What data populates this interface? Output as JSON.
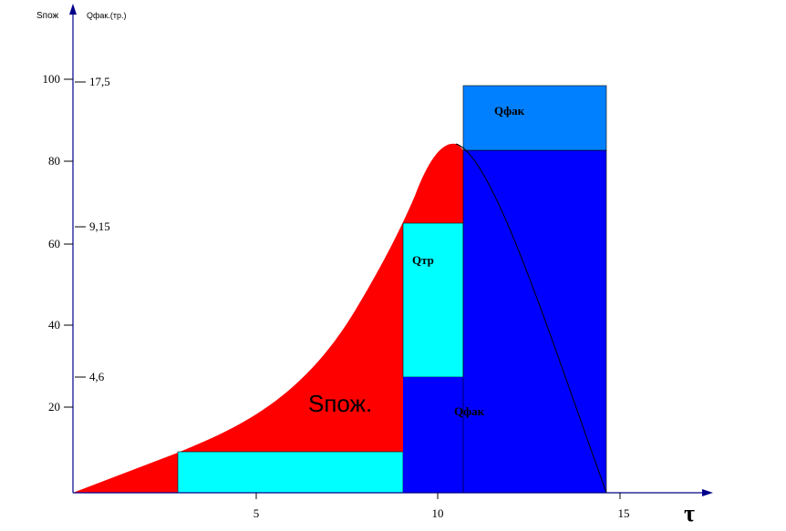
{
  "axes": {
    "y_label": "Sпож",
    "y2_label": "Qфак.(тр.)",
    "x_label": "τ",
    "y_ticks": [
      "20",
      "40",
      "60",
      "80",
      "100"
    ],
    "y2_ticks": [
      "4,6",
      "9,15",
      "17,5"
    ],
    "x_ticks": [
      "5",
      "10",
      "15"
    ]
  },
  "regions": {
    "fire_area": "Sпож.",
    "q_required": "Qтр",
    "q_actual_top": "Qфак",
    "q_actual_bottom": "Qфак"
  }
}
